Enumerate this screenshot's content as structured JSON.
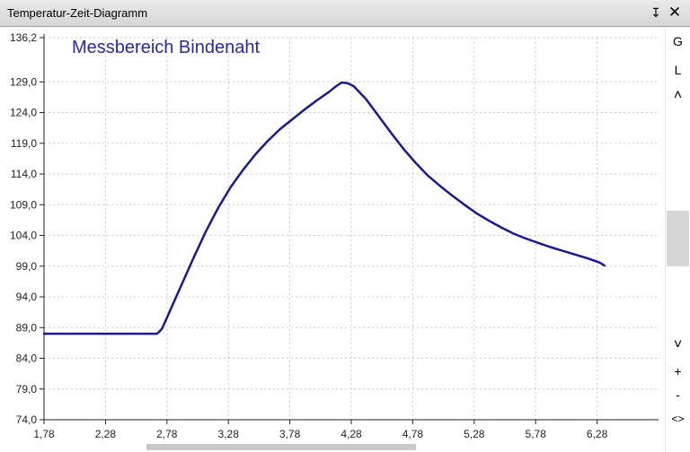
{
  "window": {
    "title": "Temperatur-Zeit-Diagramm",
    "pin_glyph": "↧",
    "close_glyph": "✕"
  },
  "sidebar": {
    "buttons": [
      "G",
      "L",
      "˄",
      "˅",
      "+",
      "-",
      "<>"
    ],
    "scroll_position": 0.55
  },
  "chart_data": {
    "type": "line",
    "title": "Messbereich Bindenaht",
    "xlabel": "",
    "ylabel": "",
    "xlim": [
      1.78,
      6.78
    ],
    "ylim": [
      74.0,
      136.2
    ],
    "x_ticks": [
      "1,78",
      "2,28",
      "2,78",
      "3,28",
      "3,78",
      "4,28",
      "4,78",
      "5,28",
      "5,78",
      "6,28"
    ],
    "x_tick_values": [
      1.78,
      2.28,
      2.78,
      3.28,
      3.78,
      4.28,
      4.78,
      5.28,
      5.78,
      6.28
    ],
    "y_ticks": [
      "74,0",
      "79,0",
      "84,0",
      "89,0",
      "94,0",
      "99,0",
      "104,0",
      "109,0",
      "114,0",
      "119,0",
      "124,0",
      "129,0",
      "136,2"
    ],
    "y_tick_values": [
      74.0,
      79.0,
      84.0,
      89.0,
      94.0,
      99.0,
      104.0,
      109.0,
      114.0,
      119.0,
      124.0,
      129.0,
      136.2
    ],
    "grid": true,
    "series": [
      {
        "color": "#1a1a8c",
        "x": [
          1.78,
          2.0,
          2.3,
          2.5,
          2.65,
          2.7,
          2.74,
          2.8,
          2.9,
          3.0,
          3.1,
          3.2,
          3.3,
          3.4,
          3.5,
          3.6,
          3.7,
          3.8,
          3.9,
          4.0,
          4.1,
          4.15,
          4.2,
          4.25,
          4.3,
          4.4,
          4.5,
          4.6,
          4.7,
          4.8,
          4.9,
          5.0,
          5.1,
          5.2,
          5.3,
          5.4,
          5.5,
          5.6,
          5.7,
          5.8,
          5.9,
          6.0,
          6.1,
          6.2,
          6.3,
          6.34
        ],
        "y": [
          88.0,
          88.0,
          88.0,
          88.0,
          88.0,
          88.0,
          88.8,
          91.5,
          96.0,
          100.5,
          104.8,
          108.6,
          111.9,
          114.7,
          117.2,
          119.4,
          121.3,
          122.9,
          124.5,
          126.0,
          127.4,
          128.2,
          128.9,
          128.8,
          128.3,
          126.2,
          123.5,
          120.8,
          118.2,
          115.9,
          113.8,
          112.1,
          110.5,
          109.0,
          107.6,
          106.4,
          105.3,
          104.3,
          103.5,
          102.8,
          102.1,
          101.5,
          100.9,
          100.3,
          99.6,
          99.1
        ]
      }
    ]
  }
}
